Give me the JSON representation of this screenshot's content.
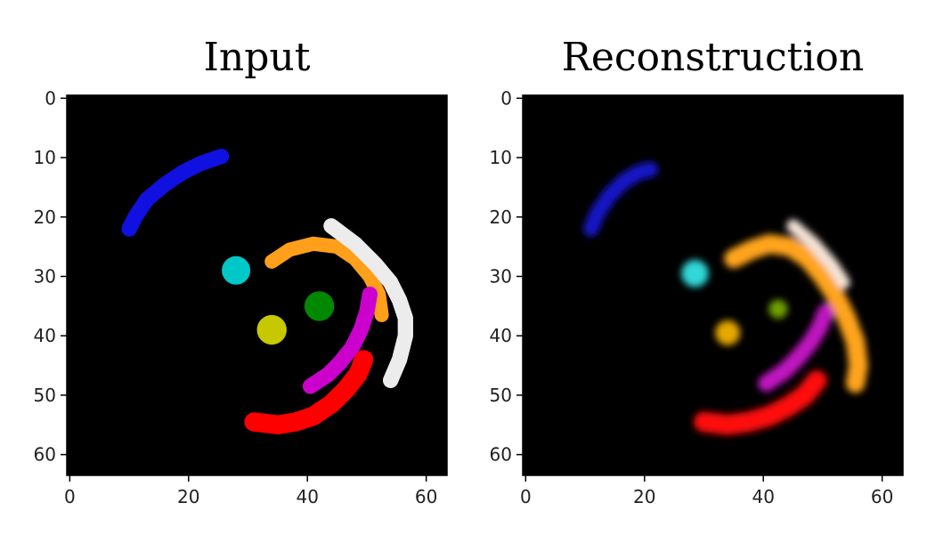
{
  "panels": [
    {
      "title": "Input",
      "x_ticks": [
        0,
        20,
        40,
        60
      ],
      "y_ticks": [
        0,
        10,
        20,
        30,
        40,
        50,
        60
      ],
      "image_extent": [
        -0.5,
        63.5
      ],
      "background": "#000000"
    },
    {
      "title": "Reconstruction",
      "x_ticks": [
        0,
        20,
        40,
        60
      ],
      "y_ticks": [
        0,
        10,
        20,
        30,
        40,
        50,
        60
      ],
      "image_extent": [
        -0.5,
        63.5
      ],
      "background": "#000000"
    }
  ],
  "objects": {
    "input": [
      {
        "name": "blue-arc",
        "type": "arc",
        "color": "#1010e0",
        "width": 2.6,
        "points": [
          [
            10,
            22
          ],
          [
            11,
            20
          ],
          [
            13,
            17
          ],
          [
            16,
            14.5
          ],
          [
            19,
            12.5
          ],
          [
            22,
            11
          ],
          [
            25.5,
            9.8
          ]
        ]
      },
      {
        "name": "cyan-dot",
        "type": "dot",
        "color": "#00c8c8",
        "radius": 2.4,
        "center": [
          28,
          29
        ]
      },
      {
        "name": "orange-arc",
        "type": "arc",
        "color": "#ff9f1a",
        "width": 2.4,
        "points": [
          [
            34,
            27.5
          ],
          [
            37,
            25.5
          ],
          [
            41,
            24.5
          ],
          [
            45,
            25
          ],
          [
            48,
            27
          ],
          [
            50.5,
            30
          ],
          [
            52,
            33
          ],
          [
            52.5,
            36.5
          ]
        ]
      },
      {
        "name": "white-arc",
        "type": "arc",
        "color": "#ececec",
        "width": 2.6,
        "points": [
          [
            44,
            21.5
          ],
          [
            48,
            24.5
          ],
          [
            51.5,
            28
          ],
          [
            54,
            31
          ],
          [
            55.5,
            34
          ],
          [
            56.5,
            37
          ],
          [
            56.5,
            40
          ],
          [
            55.5,
            44
          ],
          [
            54,
            47.5
          ]
        ]
      },
      {
        "name": "green-dot",
        "type": "dot",
        "color": "#008800",
        "radius": 2.5,
        "center": [
          42,
          35
        ]
      },
      {
        "name": "yellow-dot",
        "type": "dot",
        "color": "#c8c800",
        "radius": 2.5,
        "center": [
          34,
          39
        ]
      },
      {
        "name": "magenta-arc",
        "type": "arc",
        "color": "#cc00cc",
        "width": 2.6,
        "points": [
          [
            40.5,
            48.5
          ],
          [
            43.5,
            46.5
          ],
          [
            45.5,
            44.5
          ],
          [
            47.5,
            42
          ],
          [
            49,
            39
          ],
          [
            50,
            36
          ],
          [
            50.5,
            33
          ]
        ]
      },
      {
        "name": "red-arc",
        "type": "arc",
        "color": "#ff0000",
        "width": 3.2,
        "points": [
          [
            31,
            54.5
          ],
          [
            35,
            55
          ],
          [
            38,
            54.5
          ],
          [
            41,
            53.5
          ],
          [
            44,
            51.5
          ],
          [
            46.5,
            49
          ],
          [
            48.5,
            46.5
          ],
          [
            49.5,
            44
          ]
        ]
      }
    ],
    "reconstruction": [
      {
        "name": "blue-arc",
        "type": "arc",
        "color": "#1414c8",
        "width": 2.6,
        "points": [
          [
            11,
            22
          ],
          [
            12,
            19.5
          ],
          [
            14,
            16.5
          ],
          [
            16.5,
            14
          ],
          [
            19,
            12.5
          ],
          [
            21,
            12
          ]
        ]
      },
      {
        "name": "cyan-dot",
        "type": "dot",
        "color": "#30d8d8",
        "radius": 2.3,
        "center": [
          28.5,
          29.5
        ]
      },
      {
        "name": "orange-arc",
        "type": "arc",
        "color": "#ffa41a",
        "width": 3.2,
        "points": [
          [
            35,
            27
          ],
          [
            38,
            25.5
          ],
          [
            41,
            24.5
          ],
          [
            44.5,
            25
          ],
          [
            47.5,
            27
          ],
          [
            50,
            30
          ],
          [
            52,
            33
          ],
          [
            54,
            37
          ],
          [
            55.5,
            41
          ],
          [
            56,
            45
          ],
          [
            55.5,
            48
          ]
        ]
      },
      {
        "name": "white-arc",
        "type": "arc",
        "color": "#f4e4d8",
        "width": 2.2,
        "points": [
          [
            45,
            21.5
          ],
          [
            48.5,
            24.5
          ],
          [
            51.5,
            28
          ],
          [
            53.5,
            31
          ]
        ]
      },
      {
        "name": "green-dot",
        "type": "dot",
        "color": "#6fa000",
        "radius": 1.6,
        "center": [
          42.5,
          35.5
        ]
      },
      {
        "name": "yellow-dot",
        "type": "dot",
        "color": "#e6a800",
        "radius": 2.1,
        "center": [
          34,
          39.5
        ]
      },
      {
        "name": "magenta-arc",
        "type": "arc",
        "color": "#c018c0",
        "width": 2.8,
        "points": [
          [
            40.5,
            48
          ],
          [
            43.5,
            46
          ],
          [
            46,
            43.5
          ],
          [
            48,
            41
          ],
          [
            49.5,
            38.5
          ],
          [
            50.5,
            36
          ]
        ]
      },
      {
        "name": "red-arc",
        "type": "arc",
        "color": "#ff0a0a",
        "width": 3.4,
        "points": [
          [
            30,
            54.5
          ],
          [
            34,
            55
          ],
          [
            37.5,
            54.5
          ],
          [
            41,
            53.5
          ],
          [
            44,
            52
          ],
          [
            47,
            50
          ],
          [
            49,
            47.5
          ]
        ]
      }
    ]
  }
}
